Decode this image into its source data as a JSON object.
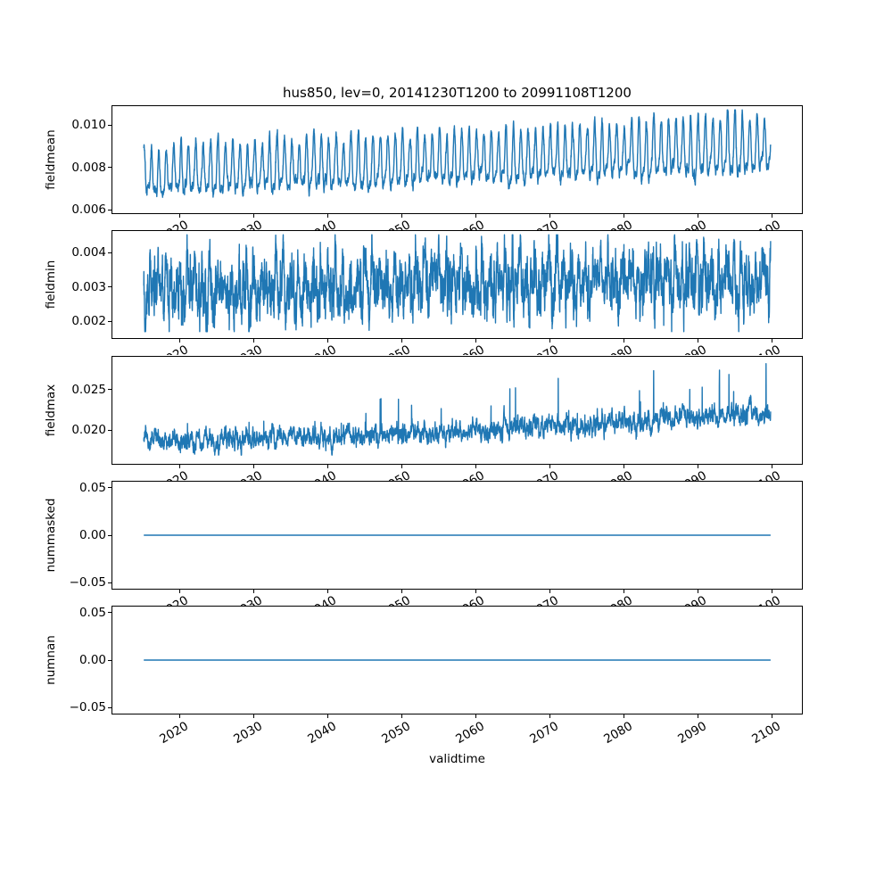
{
  "figure": {
    "title": "hus850, lev=0, 20141230T1200 to 20991108T1200",
    "xlabel": "validtime",
    "line_color": "#1f77b4",
    "axes_color": "#000000",
    "background": "#ffffff"
  },
  "x_axis": {
    "label": "validtime",
    "xlim": [
      2010.75,
      2104.1
    ],
    "ticks": [
      2020,
      2030,
      2040,
      2050,
      2060,
      2070,
      2080,
      2090,
      2100
    ],
    "tick_labels": [
      "2020",
      "2030",
      "2040",
      "2050",
      "2060",
      "2070",
      "2080",
      "2090",
      "2100"
    ],
    "tick_rotation_deg": 30,
    "data_start": 2014.997,
    "data_end": 2099.86
  },
  "chart_data": [
    {
      "type": "line",
      "ylabel": "fieldmean",
      "ylim": [
        0.0058,
        0.01093
      ],
      "yticks": [
        0.006,
        0.008,
        0.01
      ],
      "ytick_labels": [
        "0.006",
        "0.008",
        "0.010"
      ],
      "series": {
        "name": "fieldmean",
        "color": "#1f77b4",
        "approx_envelope": {
          "start": 0.0089,
          "min": 0.0061,
          "max": 0.0107,
          "end": 0.0095,
          "shape": "annual oscillation, slowly rising"
        },
        "gen": {
          "seed": 11,
          "t0": 2014.997,
          "t1": 2099.86,
          "dt": 0.019165,
          "base0": 0.0076,
          "base_slope": 0.00125,
          "base_pow": 1,
          "season_amp0": 0.0014,
          "season_amp_slope": 0.0003,
          "season_phase": 1.35,
          "harm2": 0.28,
          "harm2_phase": 0.9,
          "year_jitter": 0.1,
          "noise": 0.0001,
          "noise_ar": 0.85,
          "spike_prob": 0,
          "spike_sign": 1,
          "spike_min": 0,
          "spike_max": 0,
          "spike_grow": 0,
          "spike_scale_u": 0,
          "clip_min": 0.00597,
          "clip_max": 0.01075
        }
      }
    },
    {
      "type": "line",
      "ylabel": "fieldmin",
      "ylim": [
        0.00149,
        0.00466
      ],
      "yticks": [
        0.002,
        0.003,
        0.004
      ],
      "ytick_labels": [
        "0.002",
        "0.003",
        "0.004"
      ],
      "series": {
        "name": "fieldmin",
        "color": "#1f77b4",
        "approx_envelope": {
          "start": 0.003,
          "min": 0.0017,
          "max": 0.0045,
          "end": 0.0032,
          "shape": "noisy annual oscillation with occasional deep downward spikes, slight rise"
        },
        "gen": {
          "seed": 22,
          "t0": 2014.997,
          "t1": 2099.86,
          "dt": 0.019165,
          "base0": 0.00295,
          "base_slope": 0.0003,
          "base_pow": 1,
          "season_amp0": 0.00055,
          "season_amp_slope": 0.00012,
          "season_phase": 2.2,
          "harm2": 0.35,
          "harm2_phase": 2.6,
          "year_jitter": 0.25,
          "noise": 0.0003,
          "noise_ar": 0.72,
          "spike_prob": 0.0035,
          "spike_sign": -1,
          "spike_min": 0.0005,
          "spike_max": 0.0014,
          "spike_grow": 0,
          "spike_scale_u": 0,
          "clip_min": 0.00168,
          "clip_max": 0.00455
        }
      }
    },
    {
      "type": "line",
      "ylabel": "fieldmax",
      "ylim": [
        0.0157,
        0.0292
      ],
      "yticks": [
        0.02,
        0.025
      ],
      "ytick_labels": [
        "0.020",
        "0.025"
      ],
      "series": {
        "name": "fieldmax",
        "color": "#1f77b4",
        "approx_envelope": {
          "start": 0.0185,
          "min": 0.017,
          "max": 0.0285,
          "end": 0.023,
          "shape": "noisy rising trend with upward spikes growing toward 2100"
        },
        "gen": {
          "seed": 33,
          "t0": 2014.997,
          "t1": 2099.86,
          "dt": 0.019165,
          "base0": 0.01855,
          "base_slope": 0.0037,
          "base_pow": 1.5,
          "season_amp0": 0.00015,
          "season_amp_slope": 0.0002,
          "season_phase": 0.5,
          "harm2": 0.2,
          "harm2_phase": 1.4,
          "year_jitter": 0.3,
          "noise": 0.00042,
          "noise_ar": 0.8,
          "spike_prob": 0.004,
          "spike_sign": 1,
          "spike_min": 0.0006,
          "spike_max": 0.0038,
          "spike_grow": 2.5,
          "spike_scale_u": 0.8,
          "clip_min": 0.0168,
          "clip_max": 0.0287
        }
      }
    },
    {
      "type": "line",
      "ylabel": "nummasked",
      "ylim": [
        -0.0575,
        0.0575
      ],
      "yticks": [
        -0.05,
        0.0,
        0.05
      ],
      "ytick_labels": [
        "−0.05",
        "0.00",
        "0.05"
      ],
      "series": {
        "name": "nummasked",
        "color": "#1f77b4",
        "approx_envelope": {
          "start": 0,
          "min": 0,
          "max": 0,
          "end": 0,
          "shape": "constant zero"
        },
        "gen": {
          "seed": 44,
          "t0": 2014.997,
          "t1": 2099.86,
          "dt": 10,
          "base0": 0,
          "base_slope": 0,
          "base_pow": 1,
          "season_amp0": 0,
          "season_amp_slope": 0,
          "season_phase": 0,
          "harm2": 0,
          "harm2_phase": 0,
          "year_jitter": 0,
          "noise": 0,
          "noise_ar": 0,
          "spike_prob": 0,
          "spike_sign": 1,
          "spike_min": 0,
          "spike_max": 0,
          "spike_grow": 0,
          "spike_scale_u": 0,
          "clip_min": -1,
          "clip_max": 1
        }
      }
    },
    {
      "type": "line",
      "ylabel": "numnan",
      "ylim": [
        -0.0575,
        0.0575
      ],
      "yticks": [
        -0.05,
        0.0,
        0.05
      ],
      "ytick_labels": [
        "−0.05",
        "0.00",
        "0.05"
      ],
      "series": {
        "name": "numnan",
        "color": "#1f77b4",
        "approx_envelope": {
          "start": 0,
          "min": 0,
          "max": 0,
          "end": 0,
          "shape": "constant zero"
        },
        "gen": {
          "seed": 55,
          "t0": 2014.997,
          "t1": 2099.86,
          "dt": 10,
          "base0": 0,
          "base_slope": 0,
          "base_pow": 1,
          "season_amp0": 0,
          "season_amp_slope": 0,
          "season_phase": 0,
          "harm2": 0,
          "harm2_phase": 0,
          "year_jitter": 0,
          "noise": 0,
          "noise_ar": 0,
          "spike_prob": 0,
          "spike_sign": 1,
          "spike_min": 0,
          "spike_max": 0,
          "spike_grow": 0,
          "spike_scale_u": 0,
          "clip_min": -1,
          "clip_max": 1
        }
      }
    }
  ]
}
